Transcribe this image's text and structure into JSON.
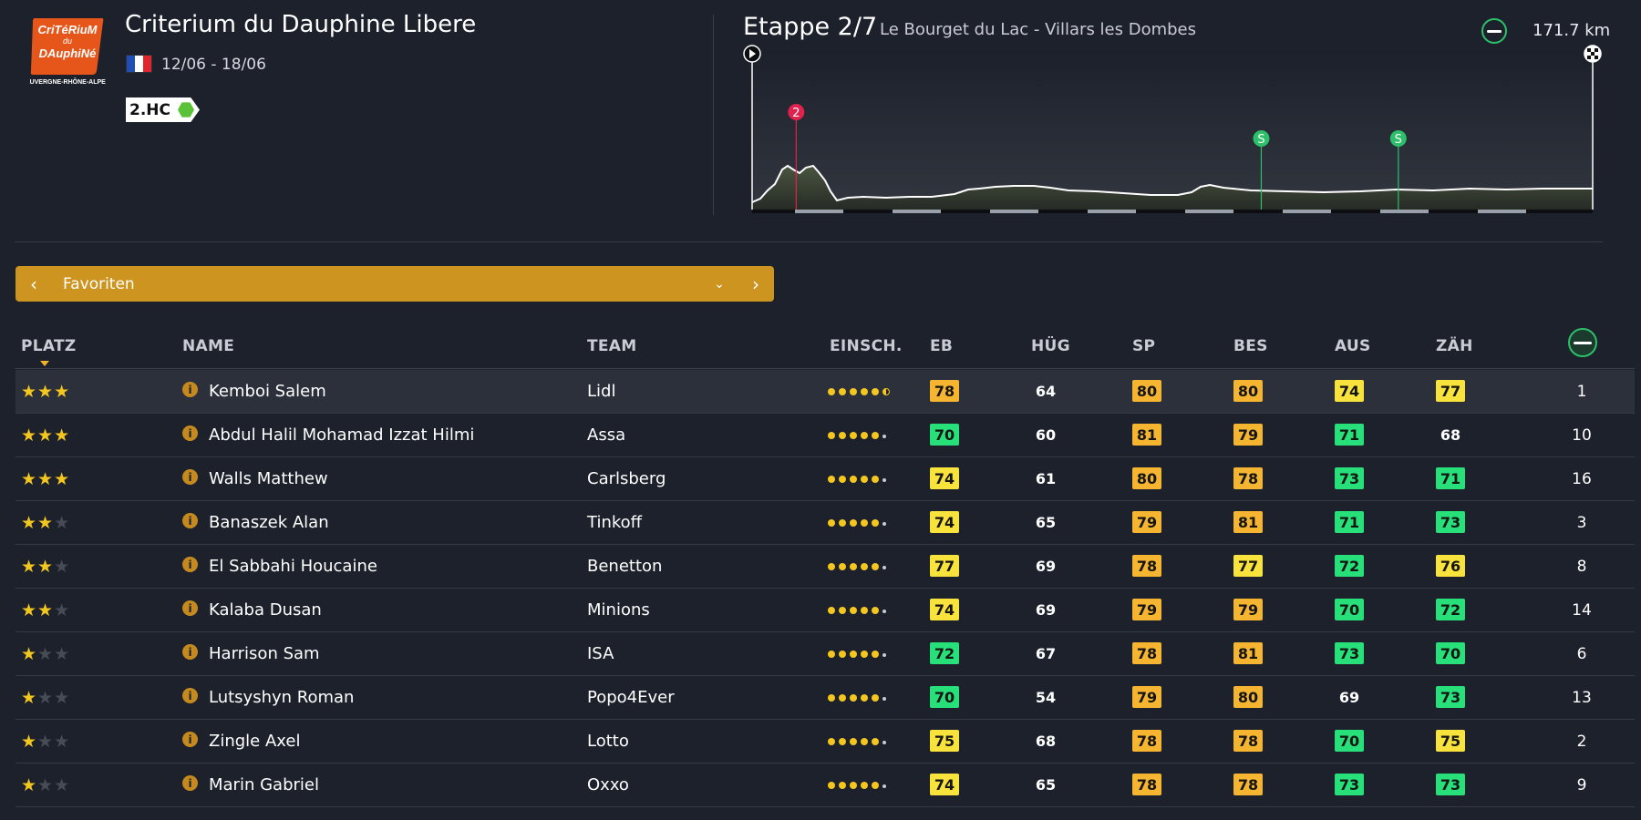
{
  "race": {
    "logo_text": [
      "CriTéRiuM",
      "du",
      "DAuphiNé",
      "AUVERGNE-RHÔNE-ALPES"
    ],
    "title": "Criterium du Dauphine Libere",
    "dates": "12/06 - 18/06",
    "class": "2.HC",
    "flag_colors": [
      "#1f4fb3",
      "#ffffff",
      "#e0262d"
    ]
  },
  "stage": {
    "title": "Etappe 2/7",
    "route": "Le Bourget du Lac - Villars les Dombes",
    "distance": "171.7 km",
    "markers": [
      {
        "kind": "climb",
        "label": "2",
        "color": "#e0224f",
        "position_km": 9
      },
      {
        "kind": "sprint",
        "label": "S",
        "color": "#2dbf6a",
        "position_km": 104
      },
      {
        "kind": "sprint",
        "label": "S",
        "color": "#2dbf6a",
        "position_km": 132
      }
    ]
  },
  "filter": {
    "prev_icon": "chevron-left-icon",
    "label": "Favoriten",
    "dropdown_icon": "chevron-down-icon",
    "next_icon": "chevron-right-icon"
  },
  "columns": {
    "platz": "PLATZ",
    "name": "NAME",
    "team": "TEAM",
    "einsch": "EINSCH.",
    "eb": "EB",
    "hug": "HÜG",
    "sp": "SP",
    "bes": "BES",
    "aus": "AUS",
    "zah": "ZÄH",
    "rank_icon": "stage-profile-icon"
  },
  "stat_colors": {
    "orange": "#f5b531",
    "yellow": "#f7e33b",
    "green": "#27e07a"
  },
  "riders": [
    {
      "stars": 3,
      "name": "Kemboi Salem",
      "team": "Lidl",
      "einsch": 5.5,
      "selected": true,
      "stats": [
        {
          "v": "78",
          "c": "orange"
        },
        {
          "v": "64",
          "c": "none"
        },
        {
          "v": "80",
          "c": "orange"
        },
        {
          "v": "80",
          "c": "orange"
        },
        {
          "v": "74",
          "c": "yellow"
        },
        {
          "v": "77",
          "c": "yellow"
        }
      ],
      "rank": "1"
    },
    {
      "stars": 3,
      "name": "Abdul Halil Mohamad Izzat Hilmi",
      "team": "Assa",
      "einsch": 5,
      "stats": [
        {
          "v": "70",
          "c": "green"
        },
        {
          "v": "60",
          "c": "none"
        },
        {
          "v": "81",
          "c": "orange"
        },
        {
          "v": "79",
          "c": "orange"
        },
        {
          "v": "71",
          "c": "green"
        },
        {
          "v": "68",
          "c": "none"
        }
      ],
      "rank": "10"
    },
    {
      "stars": 3,
      "name": "Walls Matthew",
      "team": "Carlsberg",
      "einsch": 5,
      "stats": [
        {
          "v": "74",
          "c": "yellow"
        },
        {
          "v": "61",
          "c": "none"
        },
        {
          "v": "80",
          "c": "orange"
        },
        {
          "v": "78",
          "c": "orange"
        },
        {
          "v": "73",
          "c": "green"
        },
        {
          "v": "71",
          "c": "green"
        }
      ],
      "rank": "16"
    },
    {
      "stars": 2,
      "name": "Banaszek Alan",
      "team": "Tinkoff",
      "einsch": 5,
      "stats": [
        {
          "v": "74",
          "c": "yellow"
        },
        {
          "v": "65",
          "c": "none"
        },
        {
          "v": "79",
          "c": "orange"
        },
        {
          "v": "81",
          "c": "orange"
        },
        {
          "v": "71",
          "c": "green"
        },
        {
          "v": "73",
          "c": "green"
        }
      ],
      "rank": "3"
    },
    {
      "stars": 2,
      "name": "El Sabbahi Houcaine",
      "team": "Benetton",
      "einsch": 5,
      "stats": [
        {
          "v": "77",
          "c": "yellow"
        },
        {
          "v": "69",
          "c": "none"
        },
        {
          "v": "78",
          "c": "orange"
        },
        {
          "v": "77",
          "c": "yellow"
        },
        {
          "v": "72",
          "c": "green"
        },
        {
          "v": "76",
          "c": "yellow"
        }
      ],
      "rank": "8"
    },
    {
      "stars": 2,
      "name": "Kalaba Dusan",
      "team": "Minions",
      "einsch": 5,
      "stats": [
        {
          "v": "74",
          "c": "yellow"
        },
        {
          "v": "69",
          "c": "none"
        },
        {
          "v": "79",
          "c": "orange"
        },
        {
          "v": "79",
          "c": "orange"
        },
        {
          "v": "70",
          "c": "green"
        },
        {
          "v": "72",
          "c": "green"
        }
      ],
      "rank": "14"
    },
    {
      "stars": 1,
      "name": "Harrison Sam",
      "team": "ISA",
      "einsch": 5,
      "stats": [
        {
          "v": "72",
          "c": "green"
        },
        {
          "v": "67",
          "c": "none"
        },
        {
          "v": "78",
          "c": "orange"
        },
        {
          "v": "81",
          "c": "orange"
        },
        {
          "v": "73",
          "c": "green"
        },
        {
          "v": "70",
          "c": "green"
        }
      ],
      "rank": "6"
    },
    {
      "stars": 1,
      "name": "Lutsyshyn Roman",
      "team": "Popo4Ever",
      "einsch": 5,
      "stats": [
        {
          "v": "70",
          "c": "green"
        },
        {
          "v": "54",
          "c": "none"
        },
        {
          "v": "79",
          "c": "orange"
        },
        {
          "v": "80",
          "c": "orange"
        },
        {
          "v": "69",
          "c": "none"
        },
        {
          "v": "73",
          "c": "green"
        }
      ],
      "rank": "13"
    },
    {
      "stars": 1,
      "name": "Zingle Axel",
      "team": "Lotto",
      "einsch": 5,
      "stats": [
        {
          "v": "75",
          "c": "yellow"
        },
        {
          "v": "68",
          "c": "none"
        },
        {
          "v": "78",
          "c": "orange"
        },
        {
          "v": "78",
          "c": "orange"
        },
        {
          "v": "70",
          "c": "green"
        },
        {
          "v": "75",
          "c": "yellow"
        }
      ],
      "rank": "2"
    },
    {
      "stars": 1,
      "name": "Marin Gabriel",
      "team": "Oxxo",
      "einsch": 5,
      "stats": [
        {
          "v": "74",
          "c": "yellow"
        },
        {
          "v": "65",
          "c": "none"
        },
        {
          "v": "78",
          "c": "orange"
        },
        {
          "v": "78",
          "c": "orange"
        },
        {
          "v": "73",
          "c": "green"
        },
        {
          "v": "73",
          "c": "green"
        }
      ],
      "rank": "9"
    }
  ]
}
